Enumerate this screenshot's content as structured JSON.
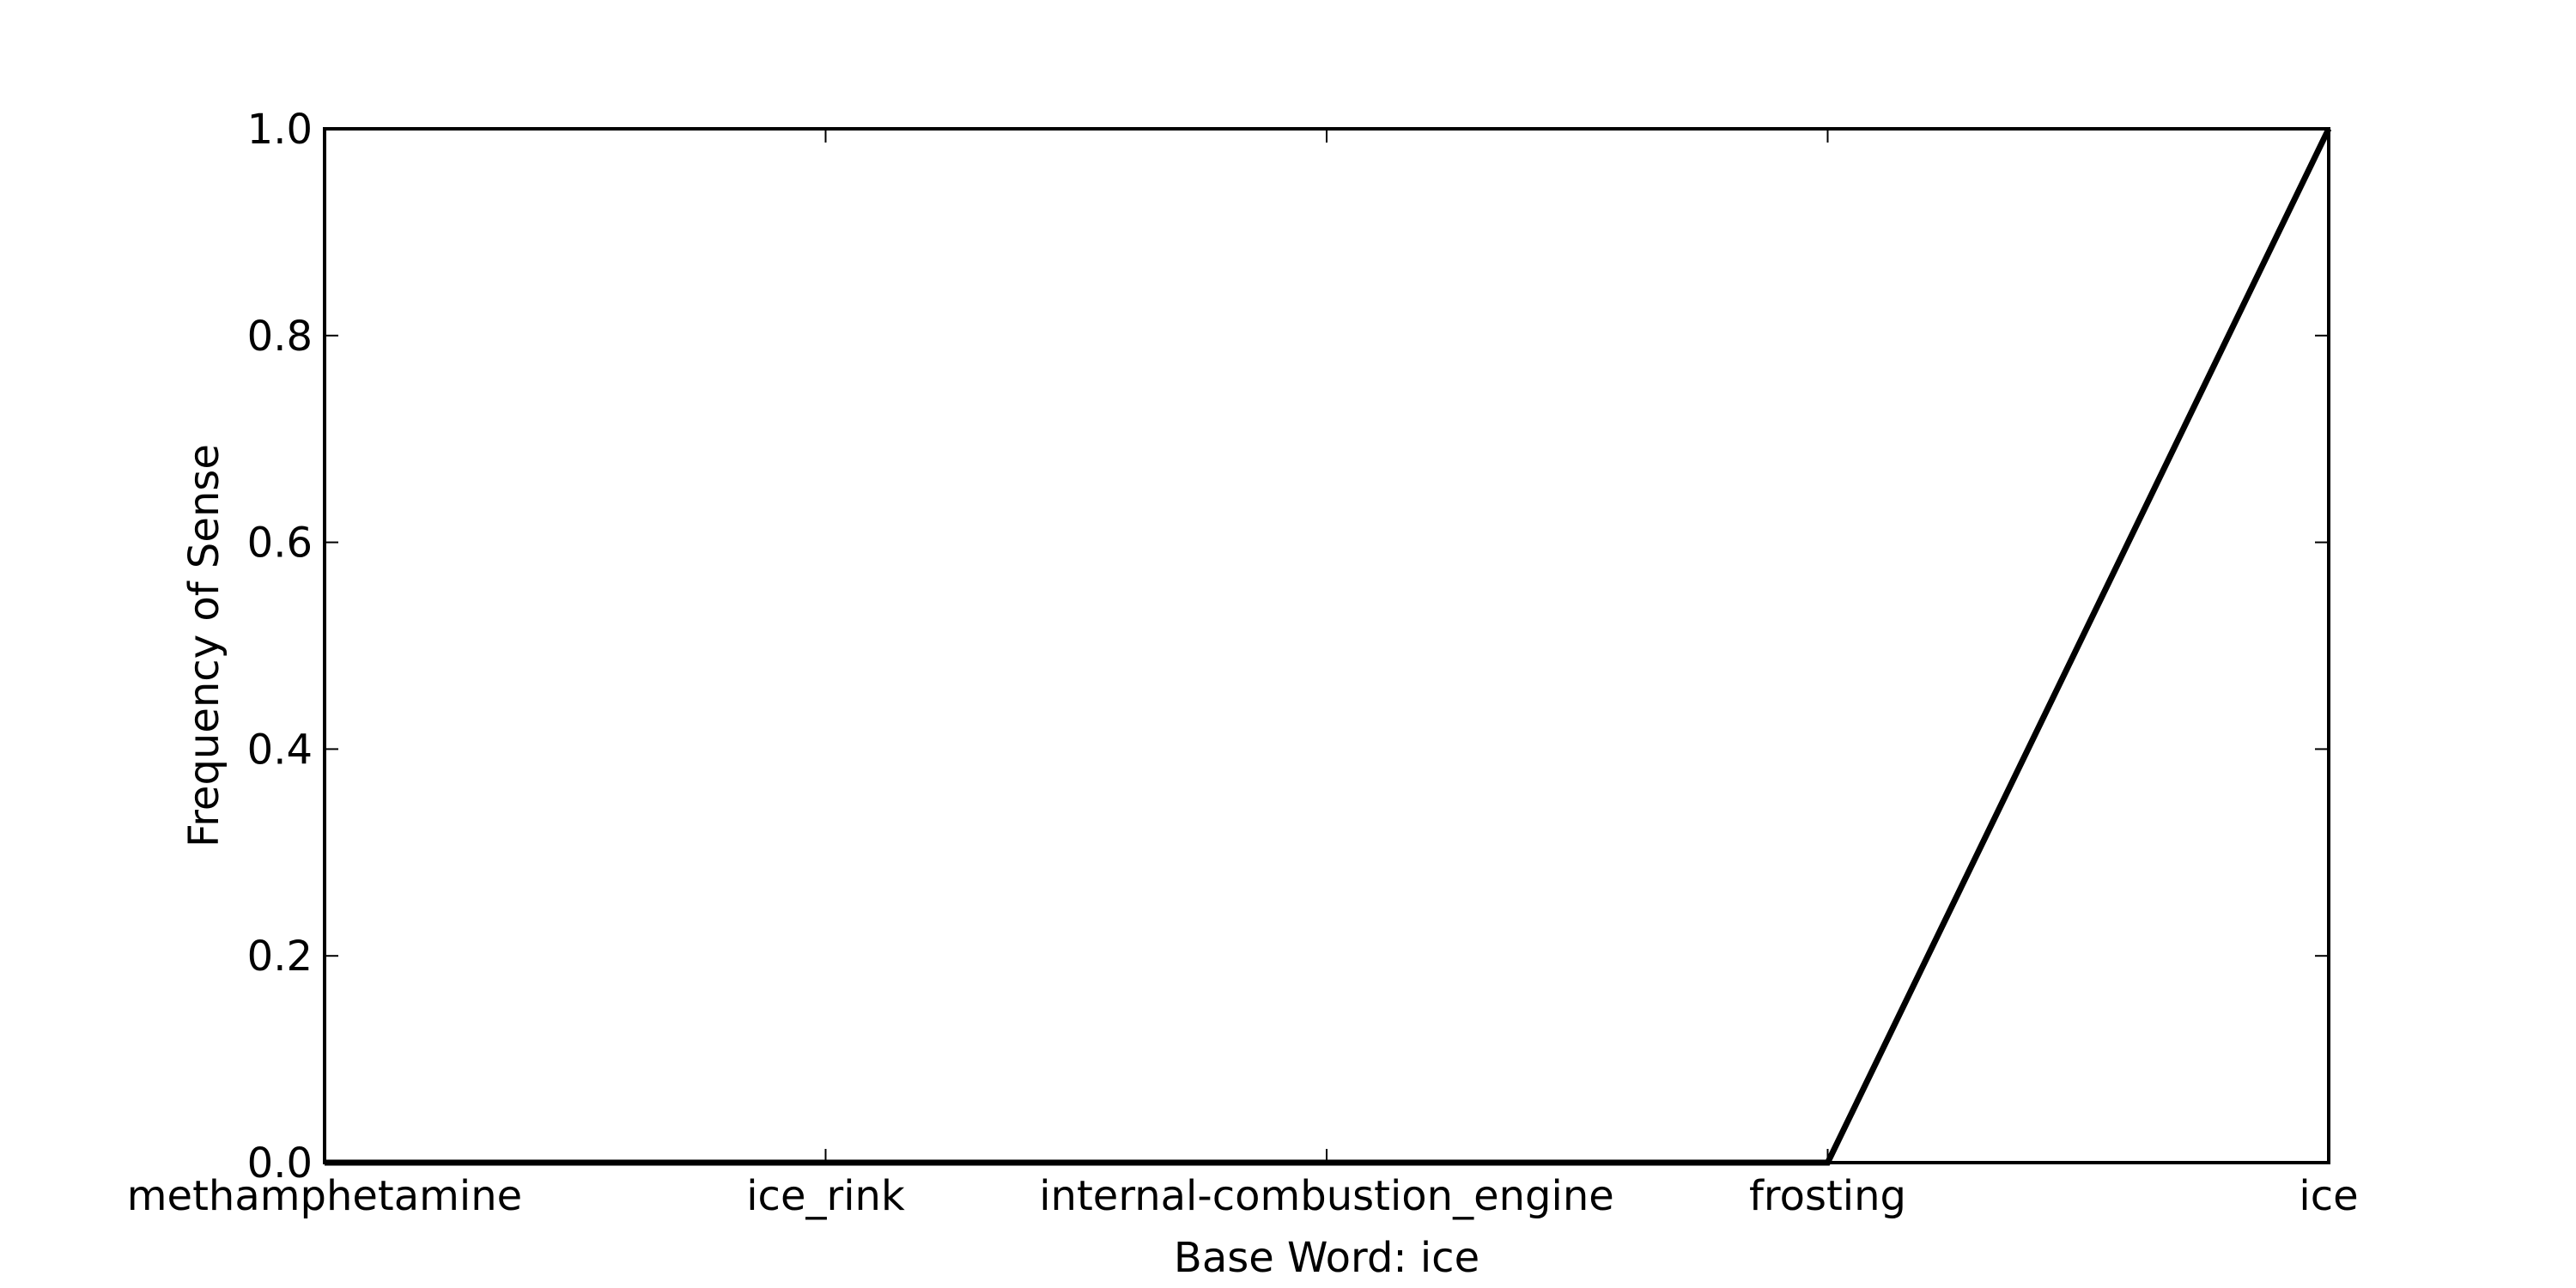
{
  "chart_data": {
    "type": "line",
    "categories": [
      "methamphetamine",
      "ice_rink",
      "internal-combustion_engine",
      "frosting",
      "ice"
    ],
    "series": [
      {
        "values": [
          0.0,
          0.0,
          0.0,
          0.0,
          1.0
        ]
      }
    ],
    "xlabel": "Base Word: ice",
    "ylabel": "Frequency of Sense",
    "ylim": [
      0.0,
      1.0
    ],
    "yticks": [
      "0.0",
      "0.2",
      "0.4",
      "0.6",
      "0.8",
      "1.0"
    ],
    "grid": false,
    "line_color": "#000000"
  }
}
